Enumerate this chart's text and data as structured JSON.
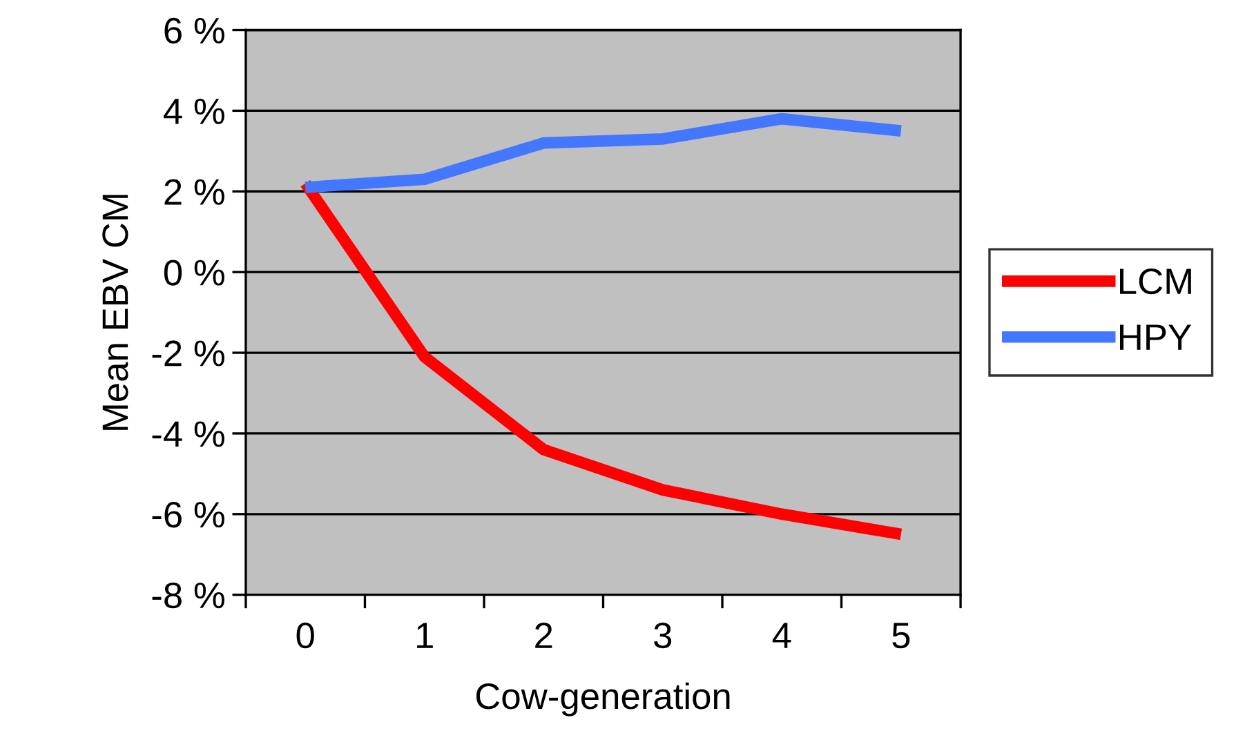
{
  "chart_data": {
    "type": "line",
    "xlabel": "Cow-generation",
    "ylabel": "Mean EBV CM",
    "categories": [
      "0",
      "1",
      "2",
      "3",
      "4",
      "5"
    ],
    "series": [
      {
        "name": "LCM",
        "color": "#ff0000",
        "values": [
          2.2,
          -2.1,
          -4.4,
          -5.4,
          -6.0,
          -6.5
        ]
      },
      {
        "name": "HPY",
        "color": "#4477ff",
        "values": [
          2.1,
          2.3,
          3.2,
          3.3,
          3.8,
          3.5
        ]
      }
    ],
    "ylim": [
      -8,
      6
    ],
    "yticks": [
      {
        "value": -8,
        "label": "-8 %"
      },
      {
        "value": -6,
        "label": "-6 %"
      },
      {
        "value": -4,
        "label": "-4 %"
      },
      {
        "value": -2,
        "label": "-2 %"
      },
      {
        "value": 0,
        "label": "0 %"
      },
      {
        "value": 2,
        "label": "2 %"
      },
      {
        "value": 4,
        "label": "4 %"
      },
      {
        "value": 6,
        "label": "6 %"
      }
    ],
    "grid": "y",
    "legend": "right",
    "marker": "none",
    "line_style": "solid"
  }
}
